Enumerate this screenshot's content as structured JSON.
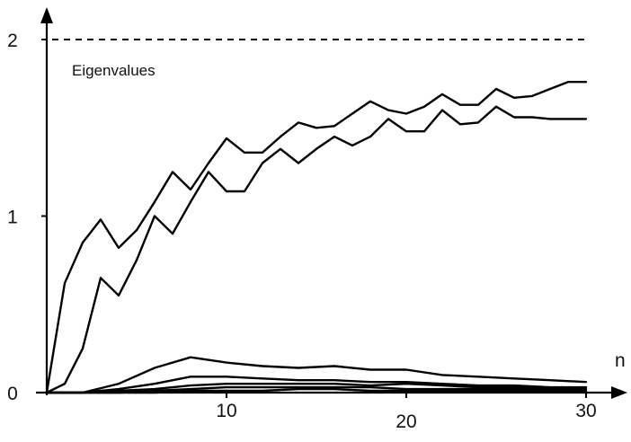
{
  "chart_data": {
    "type": "line",
    "xlabel": "n",
    "ylabel": "",
    "xlim": [
      0,
      30
    ],
    "ylim": [
      0,
      2
    ],
    "x_ticks": [
      "10",
      "20",
      "30"
    ],
    "y_ticks": [
      "0",
      "1",
      "2"
    ],
    "annotation": "Eigenvalues",
    "reference_line": {
      "y": 2,
      "style": "dashed"
    },
    "series": [
      {
        "x": [
          0,
          1,
          2,
          3,
          4,
          5,
          6,
          7,
          8,
          9,
          10,
          11,
          12,
          13,
          14,
          15,
          16,
          17,
          18,
          19,
          20,
          21,
          22,
          23,
          24,
          25,
          26,
          27,
          28,
          29,
          30
        ],
        "values": [
          0,
          0.62,
          0.85,
          0.98,
          0.82,
          0.92,
          1.08,
          1.25,
          1.15,
          1.3,
          1.44,
          1.36,
          1.36,
          1.45,
          1.53,
          1.5,
          1.51,
          1.58,
          1.65,
          1.6,
          1.58,
          1.62,
          1.69,
          1.63,
          1.63,
          1.72,
          1.67,
          1.68,
          1.72,
          1.76,
          1.76
        ]
      },
      {
        "x": [
          0,
          1,
          2,
          3,
          4,
          5,
          6,
          7,
          8,
          9,
          10,
          11,
          12,
          13,
          14,
          15,
          16,
          17,
          18,
          19,
          20,
          21,
          22,
          23,
          24,
          25,
          26,
          27,
          28,
          29,
          30
        ],
        "values": [
          0,
          0.05,
          0.25,
          0.65,
          0.55,
          0.75,
          1.0,
          0.9,
          1.08,
          1.25,
          1.14,
          1.14,
          1.3,
          1.38,
          1.3,
          1.38,
          1.45,
          1.4,
          1.45,
          1.55,
          1.48,
          1.48,
          1.6,
          1.52,
          1.53,
          1.62,
          1.56,
          1.56,
          1.55,
          1.55,
          1.55
        ]
      },
      {
        "x": [
          0,
          2,
          4,
          6,
          8,
          10,
          12,
          14,
          16,
          18,
          20,
          22,
          24,
          26,
          28,
          30
        ],
        "values": [
          0,
          0.0,
          0.05,
          0.14,
          0.2,
          0.17,
          0.15,
          0.14,
          0.15,
          0.13,
          0.13,
          0.1,
          0.09,
          0.08,
          0.07,
          0.06
        ]
      },
      {
        "x": [
          0,
          2,
          4,
          6,
          8,
          10,
          12,
          14,
          16,
          18,
          20,
          22,
          24,
          26,
          28,
          30
        ],
        "values": [
          0,
          0.0,
          0.02,
          0.05,
          0.09,
          0.09,
          0.08,
          0.07,
          0.07,
          0.06,
          0.06,
          0.05,
          0.04,
          0.04,
          0.03,
          0.03
        ]
      },
      {
        "x": [
          0,
          2,
          4,
          6,
          8,
          10,
          12,
          14,
          16,
          18,
          20,
          22,
          24,
          26,
          28,
          30
        ],
        "values": [
          0,
          0.0,
          0.01,
          0.02,
          0.04,
          0.05,
          0.05,
          0.05,
          0.05,
          0.04,
          0.05,
          0.04,
          0.03,
          0.03,
          0.02,
          0.02
        ]
      },
      {
        "x": [
          0,
          2,
          4,
          6,
          8,
          10,
          12,
          14,
          16,
          18,
          20,
          22,
          24,
          26,
          28,
          30
        ],
        "values": [
          0,
          0.0,
          0.0,
          0.01,
          0.02,
          0.03,
          0.03,
          0.03,
          0.03,
          0.03,
          0.02,
          0.02,
          0.02,
          0.02,
          0.01,
          0.01
        ]
      },
      {
        "x": [
          0,
          2,
          4,
          6,
          8,
          10,
          12,
          14,
          16,
          18,
          20,
          22,
          24,
          26,
          28,
          30
        ],
        "values": [
          0,
          0.0,
          0.0,
          0.0,
          0.01,
          0.01,
          0.01,
          0.02,
          0.02,
          0.01,
          0.01,
          0.01,
          0.01,
          0.01,
          0.01,
          0.0
        ]
      }
    ]
  }
}
